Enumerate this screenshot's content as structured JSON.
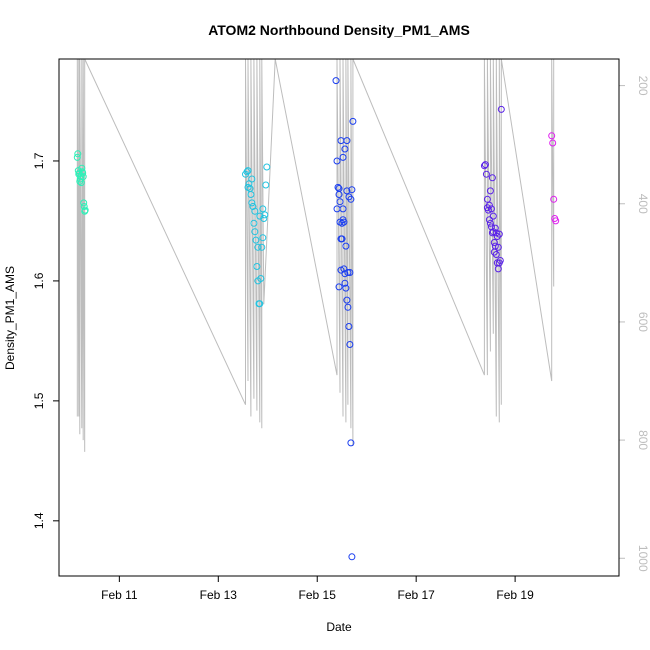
{
  "chart_data": {
    "type": "scatter",
    "title": "ATOM2 Northbound Density_PM1_AMS",
    "xlabel": "Date",
    "ylabel": "Density_PM1_AMS",
    "x_unit": "days (Feb 2017, day-of-month)",
    "xlim": [
      9.78,
      21.1
    ],
    "ylim": [
      1.354,
      1.785
    ],
    "x_ticks": [
      {
        "value": 11,
        "label": "Feb 11"
      },
      {
        "value": 13,
        "label": "Feb 13"
      },
      {
        "value": 15,
        "label": "Feb 15"
      },
      {
        "value": 17,
        "label": "Feb 17"
      },
      {
        "value": 19,
        "label": "Feb 19"
      }
    ],
    "y_ticks": [
      {
        "value": 1.4,
        "label": "1.4"
      },
      {
        "value": 1.5,
        "label": "1.5"
      },
      {
        "value": 1.6,
        "label": "1.6"
      },
      {
        "value": 1.7,
        "label": "1.7"
      }
    ],
    "right_axis": {
      "color": "#bdbdbd",
      "ylim": [
        1030,
        155
      ],
      "reversed": true,
      "ticks": [
        {
          "value": 200,
          "label": "200"
        },
        {
          "value": 400,
          "label": "400"
        },
        {
          "value": 600,
          "label": "600"
        },
        {
          "value": 800,
          "label": "800"
        },
        {
          "value": 1000,
          "label": "1000"
        }
      ]
    },
    "grid": false,
    "legend": "none",
    "series": [
      {
        "color": "#2ef0b8",
        "x": [
          10.15,
          10.16,
          10.17,
          10.18,
          10.19,
          10.2,
          10.21,
          10.22,
          10.23,
          10.24,
          10.25,
          10.26,
          10.27,
          10.28,
          10.29,
          10.3,
          10.31
        ],
        "y": [
          1.703,
          1.706,
          1.692,
          1.689,
          1.69,
          1.683,
          1.685,
          1.687,
          1.682,
          1.694,
          1.691,
          1.69,
          1.687,
          1.665,
          1.662,
          1.658,
          1.659
        ]
      },
      {
        "color": "#22c3e0",
        "x": [
          13.55,
          13.58,
          13.6,
          13.62,
          13.64,
          13.66,
          13.68,
          13.7,
          13.72,
          13.74,
          13.76,
          13.78,
          13.8,
          13.82,
          13.84,
          13.86,
          13.88,
          13.9,
          13.92,
          13.94,
          13.96,
          13.98,
          13.6,
          13.68,
          13.74,
          13.8,
          13.84,
          13.9
        ],
        "y": [
          1.689,
          1.691,
          1.692,
          1.681,
          1.677,
          1.672,
          1.665,
          1.662,
          1.648,
          1.641,
          1.634,
          1.612,
          1.6,
          1.581,
          1.581,
          1.602,
          1.628,
          1.636,
          1.652,
          1.655,
          1.68,
          1.695,
          1.678,
          1.685,
          1.658,
          1.628,
          1.654,
          1.66
        ]
      },
      {
        "color": "#1a3ef0",
        "x": [
          15.38,
          15.4,
          15.42,
          15.44,
          15.46,
          15.48,
          15.5,
          15.52,
          15.54,
          15.56,
          15.58,
          15.6,
          15.62,
          15.64,
          15.66,
          15.68,
          15.7,
          15.72,
          15.4,
          15.44,
          15.48,
          15.52,
          15.56,
          15.6,
          15.64,
          15.68,
          15.46,
          15.5,
          15.54,
          15.58,
          15.62,
          15.66,
          15.7,
          15.52,
          15.56,
          15.6,
          15.44,
          15.48
        ],
        "y": [
          1.767,
          1.7,
          1.678,
          1.672,
          1.666,
          1.635,
          1.635,
          1.651,
          1.61,
          1.598,
          1.594,
          1.584,
          1.578,
          1.562,
          1.547,
          1.465,
          1.37,
          1.733,
          1.66,
          1.677,
          1.717,
          1.703,
          1.71,
          1.675,
          1.67,
          1.668,
          1.649,
          1.648,
          1.649,
          1.629,
          1.607,
          1.607,
          1.676,
          1.66,
          1.606,
          1.717,
          1.595,
          1.609
        ]
      },
      {
        "color": "#5a22e8",
        "x": [
          18.38,
          18.4,
          18.42,
          18.44,
          18.46,
          18.48,
          18.5,
          18.52,
          18.54,
          18.56,
          18.58,
          18.6,
          18.62,
          18.64,
          18.66,
          18.68,
          18.7,
          18.72,
          18.44,
          18.48,
          18.52,
          18.56,
          18.6,
          18.64,
          18.68,
          18.5,
          18.54,
          18.58,
          18.62,
          18.66
        ],
        "y": [
          1.696,
          1.697,
          1.689,
          1.668,
          1.659,
          1.651,
          1.648,
          1.645,
          1.64,
          1.641,
          1.632,
          1.629,
          1.622,
          1.615,
          1.61,
          1.615,
          1.617,
          1.743,
          1.661,
          1.663,
          1.66,
          1.654,
          1.644,
          1.637,
          1.639,
          1.675,
          1.686,
          1.624,
          1.64,
          1.628
        ]
      },
      {
        "color": "#e01ef0",
        "x": [
          19.74,
          19.76,
          19.78,
          19.8,
          19.82
        ],
        "y": [
          1.721,
          1.715,
          1.668,
          1.652,
          1.65
        ]
      }
    ],
    "secondary_series": {
      "color": "#bdbdbd",
      "note": "grey altitude trace (right axis)",
      "x": [
        10.15,
        10.15,
        10.18,
        10.18,
        10.2,
        10.2,
        10.24,
        10.24,
        10.27,
        10.27,
        10.3,
        10.3,
        13.55,
        13.55,
        13.6,
        13.6,
        13.66,
        13.66,
        13.72,
        13.72,
        13.78,
        13.78,
        13.84,
        13.84,
        13.88,
        13.88,
        13.92,
        14.15,
        15.4,
        15.4,
        15.46,
        15.46,
        15.52,
        15.52,
        15.58,
        15.58,
        15.62,
        15.62,
        15.68,
        15.68,
        15.72,
        15.72,
        18.38,
        18.38,
        18.44,
        18.44,
        18.5,
        18.5,
        18.56,
        18.56,
        18.62,
        18.62,
        18.68,
        18.68,
        18.72,
        18.72,
        19.74,
        19.74,
        19.78,
        19.78
      ],
      "y": [
        760,
        155,
        760,
        155,
        790,
        155,
        780,
        155,
        800,
        155,
        820,
        155,
        740,
        155,
        700,
        155,
        760,
        155,
        730,
        155,
        750,
        155,
        770,
        155,
        780,
        155,
        570,
        155,
        690,
        155,
        720,
        155,
        760,
        155,
        770,
        155,
        740,
        155,
        780,
        155,
        810,
        155,
        690,
        155,
        690,
        155,
        650,
        155,
        620,
        155,
        760,
        155,
        770,
        155,
        740,
        155,
        700,
        155,
        540,
        155
      ]
    }
  }
}
